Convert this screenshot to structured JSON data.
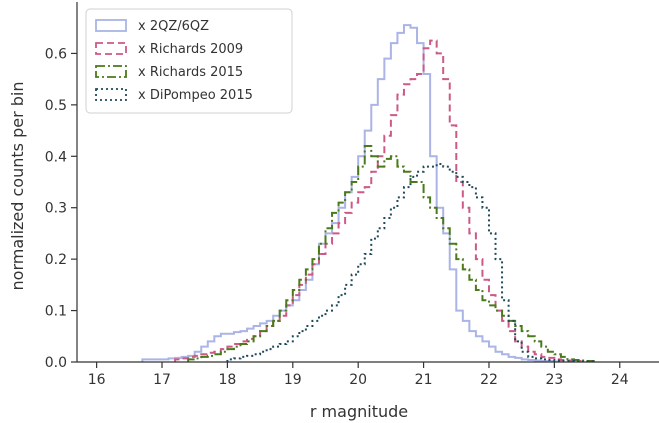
{
  "chart_data": {
    "type": "histogram-step",
    "xlabel": "r magnitude",
    "ylabel": "normalized counts per bin",
    "xlim": [
      15.7,
      24.6
    ],
    "ylim": [
      0.0,
      0.7
    ],
    "xticks": [
      "16",
      "17",
      "18",
      "19",
      "20",
      "21",
      "22",
      "23",
      "24"
    ],
    "xtick_values": [
      16,
      17,
      18,
      19,
      20,
      21,
      22,
      23,
      24
    ],
    "yticks": [
      "0.0",
      "0.1",
      "0.2",
      "0.3",
      "0.4",
      "0.5",
      "0.6"
    ],
    "ytick_values": [
      0.0,
      0.1,
      0.2,
      0.3,
      0.4,
      0.5,
      0.6
    ],
    "grid": false,
    "legend_position": "top-left",
    "bin_width": 0.1,
    "series": [
      {
        "name": "x 2QZ/6QZ",
        "color": "#aab4e6",
        "dash": "solid",
        "width": 2,
        "bin_start": 16.7,
        "values": [
          0.005,
          0.005,
          0.005,
          0.005,
          0.007,
          0.008,
          0.01,
          0.012,
          0.02,
          0.03,
          0.04,
          0.05,
          0.055,
          0.055,
          0.058,
          0.06,
          0.065,
          0.07,
          0.075,
          0.08,
          0.09,
          0.1,
          0.11,
          0.12,
          0.14,
          0.16,
          0.19,
          0.23,
          0.25,
          0.27,
          0.3,
          0.33,
          0.36,
          0.4,
          0.45,
          0.5,
          0.55,
          0.59,
          0.62,
          0.64,
          0.655,
          0.65,
          0.62,
          0.56,
          0.4,
          0.3,
          0.25,
          0.18,
          0.1,
          0.08,
          0.06,
          0.05,
          0.04,
          0.03,
          0.02,
          0.015,
          0.01,
          0.008,
          0.005,
          0.004,
          0.003,
          0.002,
          0.002,
          0.001
        ]
      },
      {
        "name": "x Richards 2009",
        "color": "#cc5a86",
        "dash": "7,4",
        "width": 2,
        "bin_start": 17.2,
        "values": [
          0.005,
          0.007,
          0.01,
          0.012,
          0.015,
          0.018,
          0.02,
          0.025,
          0.03,
          0.035,
          0.04,
          0.045,
          0.05,
          0.06,
          0.07,
          0.08,
          0.09,
          0.11,
          0.13,
          0.15,
          0.17,
          0.19,
          0.21,
          0.23,
          0.25,
          0.27,
          0.29,
          0.31,
          0.33,
          0.34,
          0.37,
          0.4,
          0.44,
          0.48,
          0.52,
          0.54,
          0.55,
          0.56,
          0.61,
          0.625,
          0.6,
          0.55,
          0.46,
          0.35,
          0.3,
          0.25,
          0.2,
          0.16,
          0.13,
          0.1,
          0.08,
          0.06,
          0.04,
          0.03,
          0.02,
          0.015,
          0.01,
          0.008,
          0.005,
          0.004,
          0.003,
          0.002
        ]
      },
      {
        "name": "x Richards 2015",
        "color": "#4a7a1c",
        "dash": "9,3,2,3",
        "width": 2,
        "bin_start": 17.4,
        "values": [
          0.005,
          0.007,
          0.01,
          0.012,
          0.015,
          0.02,
          0.025,
          0.03,
          0.035,
          0.04,
          0.05,
          0.06,
          0.07,
          0.08,
          0.1,
          0.12,
          0.14,
          0.16,
          0.18,
          0.2,
          0.23,
          0.26,
          0.29,
          0.31,
          0.33,
          0.35,
          0.38,
          0.42,
          0.4,
          0.38,
          0.395,
          0.4,
          0.38,
          0.37,
          0.35,
          0.35,
          0.32,
          0.3,
          0.28,
          0.26,
          0.23,
          0.2,
          0.18,
          0.16,
          0.14,
          0.12,
          0.11,
          0.1,
          0.09,
          0.08,
          0.07,
          0.06,
          0.05,
          0.04,
          0.03,
          0.02,
          0.015,
          0.01,
          0.005,
          0.004,
          0.003,
          0.002
        ]
      },
      {
        "name": "x DiPompeo 2015",
        "color": "#1e4a5c",
        "dash": "2,3",
        "width": 2,
        "bin_start": 18.0,
        "values": [
          0.005,
          0.007,
          0.01,
          0.012,
          0.015,
          0.02,
          0.025,
          0.03,
          0.035,
          0.04,
          0.05,
          0.06,
          0.07,
          0.08,
          0.09,
          0.1,
          0.11,
          0.13,
          0.15,
          0.17,
          0.19,
          0.21,
          0.24,
          0.26,
          0.28,
          0.3,
          0.32,
          0.34,
          0.36,
          0.37,
          0.38,
          0.38,
          0.385,
          0.38,
          0.37,
          0.36,
          0.35,
          0.34,
          0.32,
          0.3,
          0.25,
          0.2,
          0.12,
          0.08,
          0.04,
          0.02,
          0.01,
          0.007,
          0.005,
          0.004,
          0.003,
          0.002,
          0.002,
          0.001,
          0.001,
          0.001
        ]
      }
    ]
  }
}
